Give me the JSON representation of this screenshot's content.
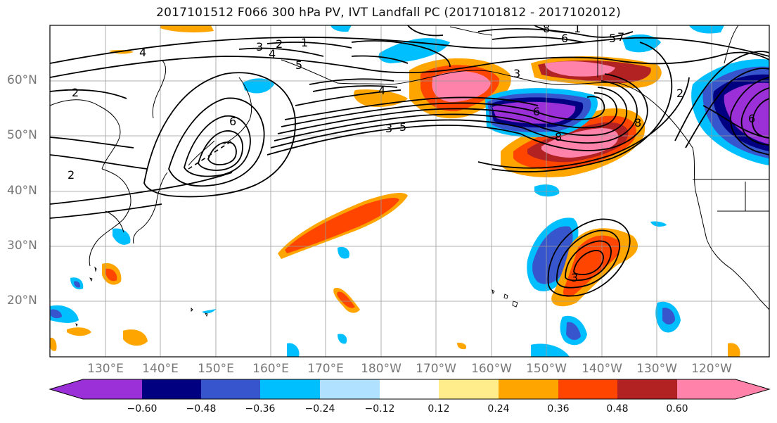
{
  "title": "2017101512 F066 300 hPa PV, IVT Landfall PC (2017101812 - 2017102012)",
  "lat_ticks": [
    "60°N",
    "50°N",
    "40°N",
    "30°N",
    "20°N"
  ],
  "lon_ticks": [
    "130°E",
    "140°E",
    "150°E",
    "160°E",
    "170°E",
    "180°W",
    "170°W",
    "160°W",
    "150°W",
    "140°W",
    "130°W",
    "120°W"
  ],
  "colorbar": {
    "ticks": [
      "−0.60",
      "−0.48",
      "−0.36",
      "−0.24",
      "−0.12",
      "0.12",
      "0.24",
      "0.36",
      "0.48",
      "0.60"
    ],
    "colors": [
      "#9b30d9",
      "#000080",
      "#3755cc",
      "#00bfff",
      "#b0e2ff",
      "#ffffff",
      "#ffec8b",
      "#ffa500",
      "#ff4500",
      "#b22222",
      "#ff82ab"
    ]
  },
  "contour_labels": [
    "1",
    "2",
    "3",
    "4",
    "5",
    "6",
    "8",
    "3",
    "5",
    "1",
    "2",
    "4",
    "3",
    "6",
    "8",
    "5",
    "4",
    "2",
    "6",
    "3",
    "2",
    "8",
    "6",
    "7"
  ]
}
